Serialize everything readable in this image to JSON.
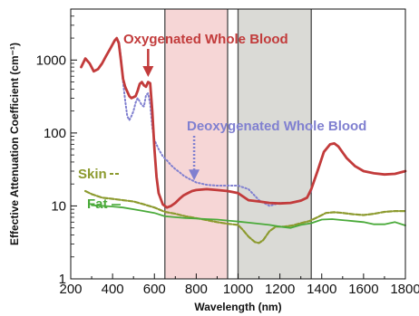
{
  "chart_data": {
    "type": "line",
    "title": "",
    "xlabel": "Wavelength (nm)",
    "ylabel": "Effective Attenuation Coefficient (cm⁻¹)",
    "xlim": [
      200,
      1800
    ],
    "ylim": [
      1,
      5000
    ],
    "yscale": "log",
    "grid": false,
    "x_ticks": [
      200,
      400,
      600,
      800,
      1000,
      1200,
      1400,
      1600,
      1800
    ],
    "x_tick_labels": [
      "200",
      "400",
      "600",
      "800",
      "1000",
      "1200",
      "1400",
      "1600",
      "1800"
    ],
    "y_ticks": [
      1,
      10,
      100,
      1000
    ],
    "y_tick_labels": [
      "1",
      "10",
      "100",
      "1000"
    ],
    "shaded_regions": [
      {
        "x_start": 650,
        "x_end": 950,
        "color": "#f6d6d6"
      },
      {
        "x_start": 1000,
        "x_end": 1350,
        "color": "#dadad6"
      }
    ],
    "series": [
      {
        "name": "Oxygenated Whole Blood",
        "color": "#c23b3b",
        "style": "solid",
        "points": [
          [
            250,
            800
          ],
          [
            270,
            1050
          ],
          [
            290,
            900
          ],
          [
            310,
            700
          ],
          [
            330,
            750
          ],
          [
            350,
            900
          ],
          [
            370,
            1150
          ],
          [
            390,
            1450
          ],
          [
            410,
            1850
          ],
          [
            420,
            2000
          ],
          [
            430,
            1700
          ],
          [
            440,
            1000
          ],
          [
            450,
            550
          ],
          [
            460,
            430
          ],
          [
            470,
            370
          ],
          [
            480,
            320
          ],
          [
            490,
            300
          ],
          [
            500,
            310
          ],
          [
            510,
            320
          ],
          [
            520,
            380
          ],
          [
            530,
            470
          ],
          [
            540,
            500
          ],
          [
            550,
            450
          ],
          [
            560,
            430
          ],
          [
            570,
            500
          ],
          [
            580,
            480
          ],
          [
            590,
            200
          ],
          [
            600,
            60
          ],
          [
            610,
            25
          ],
          [
            620,
            15
          ],
          [
            640,
            10.5
          ],
          [
            660,
            9.5
          ],
          [
            680,
            10
          ],
          [
            700,
            11
          ],
          [
            720,
            12.5
          ],
          [
            740,
            14
          ],
          [
            760,
            15
          ],
          [
            780,
            16
          ],
          [
            800,
            16.5
          ],
          [
            850,
            17
          ],
          [
            900,
            16.5
          ],
          [
            950,
            16
          ],
          [
            1000,
            15
          ],
          [
            1050,
            12
          ],
          [
            1100,
            11.5
          ],
          [
            1150,
            11
          ],
          [
            1200,
            10.8
          ],
          [
            1250,
            11
          ],
          [
            1300,
            11.8
          ],
          [
            1330,
            13
          ],
          [
            1350,
            17
          ],
          [
            1380,
            30
          ],
          [
            1410,
            55
          ],
          [
            1440,
            70
          ],
          [
            1460,
            72
          ],
          [
            1480,
            65
          ],
          [
            1520,
            45
          ],
          [
            1560,
            35
          ],
          [
            1600,
            30
          ],
          [
            1650,
            28
          ],
          [
            1700,
            27
          ],
          [
            1750,
            27.5
          ],
          [
            1800,
            30
          ]
        ]
      },
      {
        "name": "Deoxygenated Whole Blood",
        "color": "#8080d0",
        "style": "dotted",
        "points": [
          [
            420,
            1950
          ],
          [
            430,
            1800
          ],
          [
            440,
            1100
          ],
          [
            450,
            500
          ],
          [
            460,
            280
          ],
          [
            470,
            170
          ],
          [
            480,
            150
          ],
          [
            490,
            170
          ],
          [
            500,
            200
          ],
          [
            510,
            260
          ],
          [
            520,
            300
          ],
          [
            530,
            270
          ],
          [
            540,
            240
          ],
          [
            550,
            230
          ],
          [
            560,
            330
          ],
          [
            570,
            350
          ],
          [
            580,
            250
          ],
          [
            590,
            120
          ],
          [
            600,
            80
          ],
          [
            620,
            60
          ],
          [
            640,
            48
          ],
          [
            660,
            42
          ],
          [
            680,
            36
          ],
          [
            700,
            32
          ],
          [
            720,
            29
          ],
          [
            740,
            26
          ],
          [
            760,
            24
          ],
          [
            780,
            22.5
          ],
          [
            800,
            21
          ],
          [
            850,
            19.5
          ],
          [
            900,
            19
          ],
          [
            950,
            19
          ],
          [
            1000,
            19
          ],
          [
            1050,
            17
          ],
          [
            1100,
            12
          ],
          [
            1150,
            10
          ],
          [
            1200,
            11
          ],
          [
            1250,
            11
          ],
          [
            1300,
            12
          ],
          [
            1330,
            13
          ],
          [
            1350,
            16
          ]
        ]
      },
      {
        "name": "Skin",
        "color": "#8c9a2e",
        "style": "dashed",
        "points": [
          [
            270,
            16
          ],
          [
            300,
            14.5
          ],
          [
            350,
            13
          ],
          [
            400,
            12.5
          ],
          [
            450,
            12
          ],
          [
            500,
            11.5
          ],
          [
            550,
            10.5
          ],
          [
            600,
            9.5
          ],
          [
            650,
            8.3
          ],
          [
            700,
            7.8
          ],
          [
            750,
            7.2
          ],
          [
            800,
            6.8
          ],
          [
            850,
            6.4
          ],
          [
            900,
            6
          ],
          [
            950,
            5.7
          ],
          [
            1000,
            5.5
          ],
          [
            1020,
            4.8
          ],
          [
            1050,
            3.8
          ],
          [
            1080,
            3.2
          ],
          [
            1100,
            3.1
          ],
          [
            1120,
            3.4
          ],
          [
            1150,
            4.5
          ],
          [
            1180,
            5.2
          ],
          [
            1220,
            5.2
          ],
          [
            1260,
            5.4
          ],
          [
            1300,
            5.8
          ],
          [
            1340,
            6.2
          ],
          [
            1380,
            7
          ],
          [
            1420,
            8
          ],
          [
            1460,
            8.2
          ],
          [
            1500,
            8
          ],
          [
            1550,
            7.7
          ],
          [
            1600,
            7.5
          ],
          [
            1650,
            7.8
          ],
          [
            1700,
            8.3
          ],
          [
            1750,
            8.5
          ],
          [
            1800,
            8.5
          ]
        ]
      },
      {
        "name": "Fat",
        "color": "#4aaa3a",
        "style": "solid",
        "points": [
          [
            300,
            10.2
          ],
          [
            350,
            10
          ],
          [
            400,
            9.8
          ],
          [
            450,
            9.5
          ],
          [
            500,
            9
          ],
          [
            550,
            8.5
          ],
          [
            600,
            8
          ],
          [
            650,
            7.2
          ],
          [
            700,
            7
          ],
          [
            750,
            6.8
          ],
          [
            800,
            6.7
          ],
          [
            850,
            6.6
          ],
          [
            900,
            6.5
          ],
          [
            950,
            6.3
          ],
          [
            1000,
            6.1
          ],
          [
            1050,
            5.9
          ],
          [
            1100,
            5.7
          ],
          [
            1150,
            5.5
          ],
          [
            1200,
            5.2
          ],
          [
            1250,
            5
          ],
          [
            1300,
            5.5
          ],
          [
            1350,
            5.8
          ],
          [
            1400,
            6.5
          ],
          [
            1450,
            6.6
          ],
          [
            1500,
            6.4
          ],
          [
            1550,
            6.2
          ],
          [
            1600,
            6
          ],
          [
            1650,
            5.6
          ],
          [
            1700,
            5.6
          ],
          [
            1750,
            6
          ],
          [
            1800,
            5.4
          ]
        ]
      }
    ],
    "annotations": [
      {
        "text": "Oxygenated Whole Blood",
        "color": "#c23b3b",
        "arrow": {
          "x": 570,
          "y": 620
        }
      },
      {
        "text": "Deoxygenated Whole Blood",
        "color": "#8080d0",
        "arrow": {
          "x": 790,
          "y": 23
        }
      },
      {
        "text": "Skin",
        "color": "#8c9a2e"
      },
      {
        "text": "Fat",
        "color": "#4aaa3a"
      }
    ]
  }
}
